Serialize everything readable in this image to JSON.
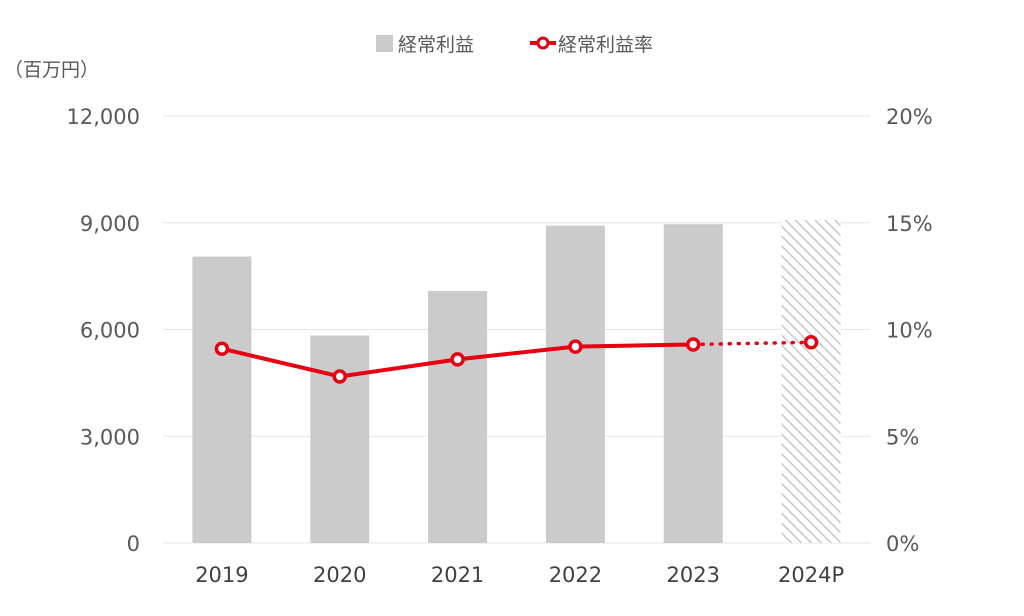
{
  "chart_data": {
    "type": "bar",
    "unit_label": "（百万円）",
    "categories": [
      "2019",
      "2020",
      "2021",
      "2022",
      "2023",
      "2024P"
    ],
    "series": [
      {
        "name": "経常利益",
        "type": "bar",
        "axis": "left",
        "values": [
          8050,
          5830,
          7080,
          8920,
          8960,
          9080
        ],
        "color": "#cbcbcb",
        "forecast_style": "hatched",
        "forecast_from_index": 5
      },
      {
        "name": "経常利益率",
        "type": "line",
        "axis": "right",
        "values": [
          9.1,
          7.8,
          8.6,
          9.2,
          9.3,
          9.4
        ],
        "color": "#e60012",
        "marker": "hollow-circle",
        "forecast_style": "dotted",
        "forecast_from_index": 5
      }
    ],
    "y_left": {
      "range": [
        0,
        12000
      ],
      "ticks": [
        0,
        3000,
        6000,
        9000,
        12000
      ],
      "tick_labels": [
        "0",
        "3,000",
        "6,000",
        "9,000",
        "12,000"
      ]
    },
    "y_right": {
      "range": [
        0,
        20
      ],
      "ticks": [
        0,
        5,
        10,
        15,
        20
      ],
      "tick_labels": [
        "0%",
        "5%",
        "10%",
        "15%",
        "20%"
      ]
    },
    "grid": true,
    "legend_position": "top-center"
  }
}
